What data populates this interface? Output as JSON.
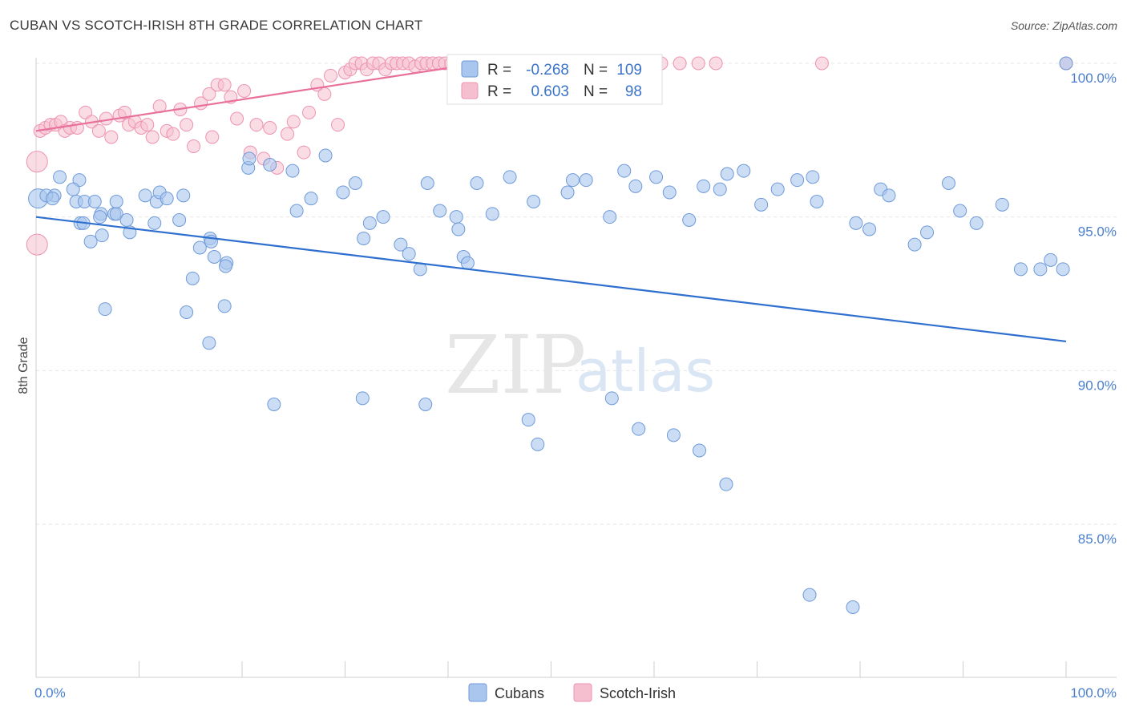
{
  "header": {
    "title": "CUBAN VS SCOTCH-IRISH 8TH GRADE CORRELATION CHART",
    "source": "Source: ZipAtlas.com"
  },
  "watermark": {
    "part1": "ZIP",
    "part2": "atlas"
  },
  "colors": {
    "cubans_fill": "#a9c6ee",
    "cubans_stroke": "#6f9ad8",
    "cubans_line": "#2f6fcf",
    "scotch_fill": "#f6bfd0",
    "scotch_stroke": "#ee93b0",
    "scotch_line": "#e8709a",
    "tick_label": "#4a7fcf",
    "grid": "#e6e6e6"
  },
  "legend": {
    "rows": [
      {
        "r_label": "R =",
        "r_value": "-0.268",
        "n_label": "N =",
        "n_value": "109"
      },
      {
        "r_label": "R =",
        "r_value": "0.603",
        "n_label": "N =",
        "n_value": "98"
      }
    ],
    "bottom": [
      "Cubans",
      "Scotch-Irish"
    ]
  },
  "chart_data": {
    "type": "scatter",
    "title": "CUBAN VS SCOTCH-IRISH 8TH GRADE CORRELATION CHART",
    "xlabel": "",
    "ylabel": "8th Grade",
    "xlim": [
      0,
      100
    ],
    "ylim": [
      80.5,
      100.8
    ],
    "x_tick_labels": [
      "0.0%",
      "100.0%"
    ],
    "y_ticks": [
      85,
      90,
      95,
      100
    ],
    "y_tick_labels": [
      "85.0%",
      "90.0%",
      "95.0%",
      "100.0%"
    ],
    "grid": true,
    "legend_position": "top-center",
    "series": [
      {
        "name": "Cubans",
        "r": -0.268,
        "n": 109,
        "trend": {
          "x": [
            0,
            100
          ],
          "y": [
            95.0,
            90.95
          ]
        },
        "points": [
          [
            0.2,
            95.6
          ],
          [
            1.8,
            95.7
          ],
          [
            2.3,
            96.3
          ],
          [
            4.2,
            96.2
          ],
          [
            3.6,
            95.9
          ],
          [
            1.0,
            95.7
          ],
          [
            1.6,
            95.6
          ],
          [
            3.9,
            95.5
          ],
          [
            4.7,
            95.5
          ],
          [
            4.3,
            94.8
          ],
          [
            4.6,
            94.8
          ],
          [
            6.4,
            94.4
          ],
          [
            5.3,
            94.2
          ],
          [
            5.7,
            95.5
          ],
          [
            7.6,
            95.1
          ],
          [
            6.3,
            95.1
          ],
          [
            7.8,
            95.1
          ],
          [
            7.8,
            95.5
          ],
          [
            6.2,
            95.0
          ],
          [
            8.8,
            94.9
          ],
          [
            9.1,
            94.5
          ],
          [
            10.6,
            95.7
          ],
          [
            11.7,
            95.5
          ],
          [
            11.5,
            94.8
          ],
          [
            12.0,
            95.8
          ],
          [
            12.7,
            95.6
          ],
          [
            13.9,
            94.9
          ],
          [
            14.3,
            95.7
          ],
          [
            15.2,
            93.0
          ],
          [
            15.9,
            94.0
          ],
          [
            16.9,
            94.3
          ],
          [
            17.3,
            93.7
          ],
          [
            17.0,
            94.2
          ],
          [
            18.5,
            93.5
          ],
          [
            18.4,
            93.4
          ],
          [
            20.6,
            96.6
          ],
          [
            20.7,
            96.9
          ],
          [
            22.7,
            96.7
          ],
          [
            24.9,
            96.5
          ],
          [
            25.3,
            95.2
          ],
          [
            26.7,
            95.6
          ],
          [
            28.1,
            97.0
          ],
          [
            29.8,
            95.8
          ],
          [
            31.0,
            96.1
          ],
          [
            31.8,
            94.3
          ],
          [
            32.4,
            94.8
          ],
          [
            33.7,
            95.0
          ],
          [
            35.4,
            94.1
          ],
          [
            36.2,
            93.8
          ],
          [
            37.3,
            93.3
          ],
          [
            38.0,
            96.1
          ],
          [
            39.2,
            95.2
          ],
          [
            40.8,
            95.0
          ],
          [
            41.0,
            94.6
          ],
          [
            41.5,
            93.7
          ],
          [
            41.9,
            93.5
          ],
          [
            42.8,
            96.1
          ],
          [
            44.3,
            95.1
          ],
          [
            46.0,
            96.3
          ],
          [
            48.3,
            95.5
          ],
          [
            51.6,
            95.8
          ],
          [
            52.1,
            96.2
          ],
          [
            53.4,
            96.2
          ],
          [
            55.7,
            95.0
          ],
          [
            57.1,
            96.5
          ],
          [
            58.2,
            96.0
          ],
          [
            60.2,
            96.3
          ],
          [
            61.5,
            95.8
          ],
          [
            63.4,
            94.9
          ],
          [
            64.8,
            96.0
          ],
          [
            66.4,
            95.9
          ],
          [
            67.1,
            96.4
          ],
          [
            68.7,
            96.5
          ],
          [
            70.4,
            95.4
          ],
          [
            72.0,
            95.9
          ],
          [
            73.9,
            96.2
          ],
          [
            75.4,
            96.3
          ],
          [
            75.8,
            95.5
          ],
          [
            79.6,
            94.8
          ],
          [
            80.9,
            94.6
          ],
          [
            82.0,
            95.9
          ],
          [
            82.8,
            95.7
          ],
          [
            85.3,
            94.1
          ],
          [
            86.5,
            94.5
          ],
          [
            88.6,
            96.1
          ],
          [
            89.7,
            95.2
          ],
          [
            91.3,
            94.8
          ],
          [
            93.8,
            95.4
          ],
          [
            95.6,
            93.3
          ],
          [
            97.5,
            93.3
          ],
          [
            98.5,
            93.6
          ],
          [
            99.7,
            93.3
          ],
          [
            100.0,
            100.0
          ],
          [
            6.7,
            92.0
          ],
          [
            16.8,
            90.9
          ],
          [
            14.6,
            91.9
          ],
          [
            18.3,
            92.1
          ],
          [
            23.1,
            88.9
          ],
          [
            31.7,
            89.1
          ],
          [
            37.8,
            88.9
          ],
          [
            47.8,
            88.4
          ],
          [
            48.7,
            87.6
          ],
          [
            55.9,
            89.1
          ],
          [
            58.5,
            88.1
          ],
          [
            61.9,
            87.9
          ],
          [
            64.4,
            87.4
          ],
          [
            67.0,
            86.3
          ],
          [
            75.1,
            82.7
          ],
          [
            79.3,
            82.3
          ]
        ]
      },
      {
        "name": "Scotch-Irish",
        "r": 0.603,
        "n": 98,
        "trend": {
          "x": [
            0,
            43
          ],
          "y": [
            97.8,
            100.0
          ]
        },
        "points": [
          [
            0.1,
            96.8
          ],
          [
            0.1,
            94.1
          ],
          [
            0.4,
            97.8
          ],
          [
            0.9,
            97.9
          ],
          [
            1.4,
            98.0
          ],
          [
            1.9,
            98.0
          ],
          [
            2.4,
            98.1
          ],
          [
            2.8,
            97.8
          ],
          [
            3.3,
            97.9
          ],
          [
            4.0,
            97.9
          ],
          [
            4.8,
            98.4
          ],
          [
            5.4,
            98.1
          ],
          [
            6.1,
            97.8
          ],
          [
            6.8,
            98.2
          ],
          [
            7.3,
            97.6
          ],
          [
            8.1,
            98.3
          ],
          [
            8.6,
            98.4
          ],
          [
            9.0,
            98.0
          ],
          [
            9.6,
            98.1
          ],
          [
            10.2,
            97.9
          ],
          [
            10.8,
            98.0
          ],
          [
            11.3,
            97.6
          ],
          [
            12.0,
            98.6
          ],
          [
            12.7,
            97.8
          ],
          [
            13.3,
            97.7
          ],
          [
            14.0,
            98.5
          ],
          [
            14.6,
            98.0
          ],
          [
            15.3,
            97.3
          ],
          [
            16.0,
            98.7
          ],
          [
            16.8,
            99.0
          ],
          [
            17.1,
            97.6
          ],
          [
            17.6,
            99.3
          ],
          [
            18.3,
            99.3
          ],
          [
            18.9,
            98.9
          ],
          [
            19.5,
            98.2
          ],
          [
            20.2,
            99.1
          ],
          [
            20.8,
            97.1
          ],
          [
            21.4,
            98.0
          ],
          [
            22.1,
            96.9
          ],
          [
            22.7,
            97.9
          ],
          [
            23.4,
            96.6
          ],
          [
            24.4,
            97.7
          ],
          [
            25.0,
            98.1
          ],
          [
            26.0,
            97.1
          ],
          [
            26.5,
            98.4
          ],
          [
            27.3,
            99.3
          ],
          [
            28.0,
            99.0
          ],
          [
            28.6,
            99.6
          ],
          [
            29.3,
            98.0
          ],
          [
            30.0,
            99.7
          ],
          [
            30.5,
            99.8
          ],
          [
            31.0,
            100.0
          ],
          [
            31.6,
            100.0
          ],
          [
            32.1,
            99.8
          ],
          [
            32.7,
            100.0
          ],
          [
            33.3,
            100.0
          ],
          [
            33.9,
            99.8
          ],
          [
            34.5,
            100.0
          ],
          [
            35.0,
            100.0
          ],
          [
            35.6,
            100.0
          ],
          [
            36.2,
            100.0
          ],
          [
            36.8,
            99.9
          ],
          [
            37.4,
            100.0
          ],
          [
            37.9,
            100.0
          ],
          [
            38.5,
            100.0
          ],
          [
            39.1,
            100.0
          ],
          [
            39.7,
            100.0
          ],
          [
            40.3,
            100.0
          ],
          [
            40.9,
            100.0
          ],
          [
            41.5,
            100.0
          ],
          [
            42.1,
            100.0
          ],
          [
            42.7,
            100.0
          ],
          [
            43.3,
            100.0
          ],
          [
            43.9,
            100.0
          ],
          [
            44.5,
            100.0
          ],
          [
            45.1,
            100.0
          ],
          [
            45.7,
            100.0
          ],
          [
            46.3,
            100.0
          ],
          [
            46.9,
            100.0
          ],
          [
            47.5,
            100.0
          ],
          [
            48.1,
            100.0
          ],
          [
            48.7,
            100.0
          ],
          [
            49.3,
            100.0
          ],
          [
            49.9,
            100.0
          ],
          [
            50.5,
            100.0
          ],
          [
            51.1,
            100.0
          ],
          [
            51.7,
            100.0
          ],
          [
            52.3,
            100.0
          ],
          [
            53.0,
            100.0
          ],
          [
            53.6,
            100.0
          ],
          [
            54.3,
            100.0
          ],
          [
            56.0,
            100.0
          ],
          [
            60.7,
            100.0
          ],
          [
            62.5,
            100.0
          ],
          [
            64.3,
            100.0
          ],
          [
            66.0,
            100.0
          ],
          [
            76.3,
            100.0
          ],
          [
            100.0,
            100.0
          ]
        ]
      }
    ]
  }
}
